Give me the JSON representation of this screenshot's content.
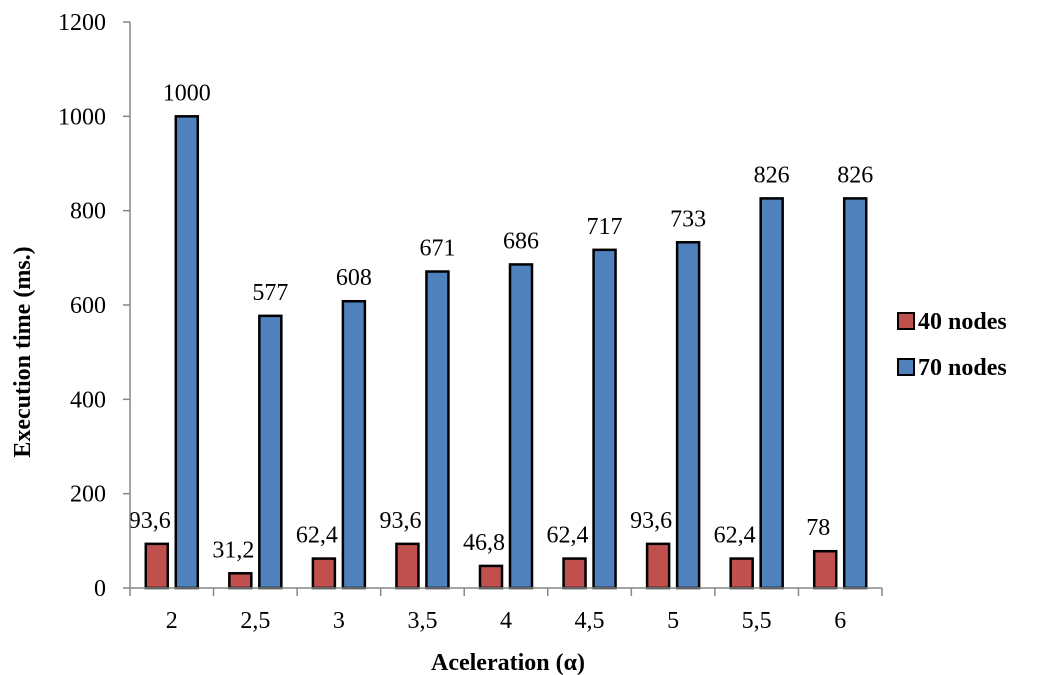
{
  "chart_data": {
    "type": "bar",
    "title": "",
    "xlabel": "Aceleration  (α)",
    "ylabel": "Execution time (ms.)",
    "categories": [
      "2",
      "2,5",
      "3",
      "3,5",
      "4",
      "4,5",
      "5",
      "5,5",
      "6"
    ],
    "ylim": [
      0,
      1200
    ],
    "yticks": [
      "0",
      "200",
      "400",
      "600",
      "800",
      "1000",
      "1200"
    ],
    "grid": false,
    "legend_position": "right",
    "series": [
      {
        "name": "40 nodes",
        "color": "#c0504d",
        "values": [
          93.6,
          31.2,
          62.4,
          93.6,
          46.8,
          62.4,
          93.6,
          62.4,
          78
        ],
        "labels": [
          "93,6",
          "31,2",
          "62,4",
          "93,6",
          "46,8",
          "62,4",
          "93,6",
          "62,4",
          "78"
        ]
      },
      {
        "name": "70 nodes",
        "color": "#4f81bd",
        "values": [
          1000,
          577,
          608,
          671,
          686,
          717,
          733,
          826,
          826
        ],
        "labels": [
          "1000",
          "577",
          "608",
          "671",
          "686",
          "717",
          "733",
          "826",
          "826"
        ]
      }
    ]
  }
}
